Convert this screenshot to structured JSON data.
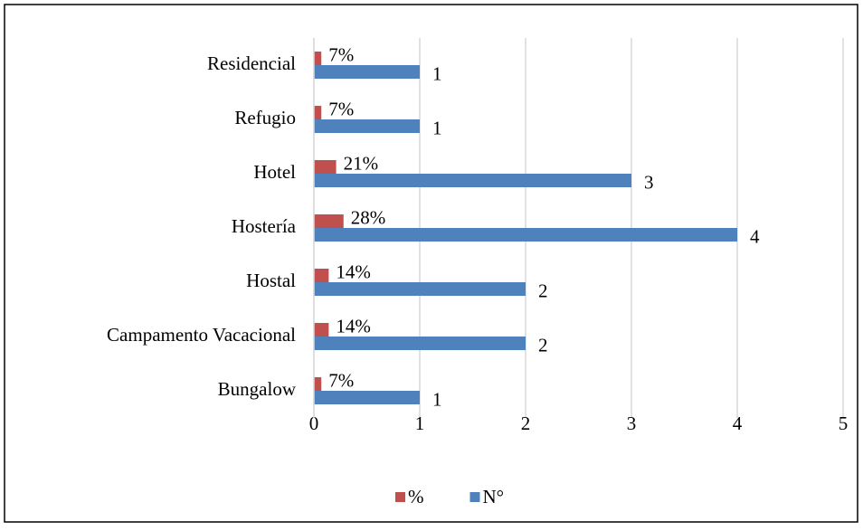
{
  "chart_data": {
    "type": "bar",
    "orientation": "horizontal",
    "categories": [
      "Bungalow",
      "Campamento Vacacional",
      "Hostal",
      "Hostería",
      "Hotel",
      "Refugio",
      "Residencial"
    ],
    "series": [
      {
        "name": "%",
        "color": "#c0504d",
        "values": [
          0.07,
          0.14,
          0.14,
          0.28,
          0.21,
          0.07,
          0.07
        ],
        "value_labels": [
          "7%",
          "14%",
          "14%",
          "28%",
          "21%",
          "7%",
          "7%"
        ]
      },
      {
        "name": "N°",
        "color": "#4f81bd",
        "values": [
          1,
          2,
          2,
          4,
          3,
          1,
          1
        ]
      }
    ],
    "xlim": [
      0,
      5
    ],
    "xticks": [
      0,
      1,
      2,
      3,
      4,
      5
    ],
    "grid": true,
    "legend": "bottom"
  }
}
